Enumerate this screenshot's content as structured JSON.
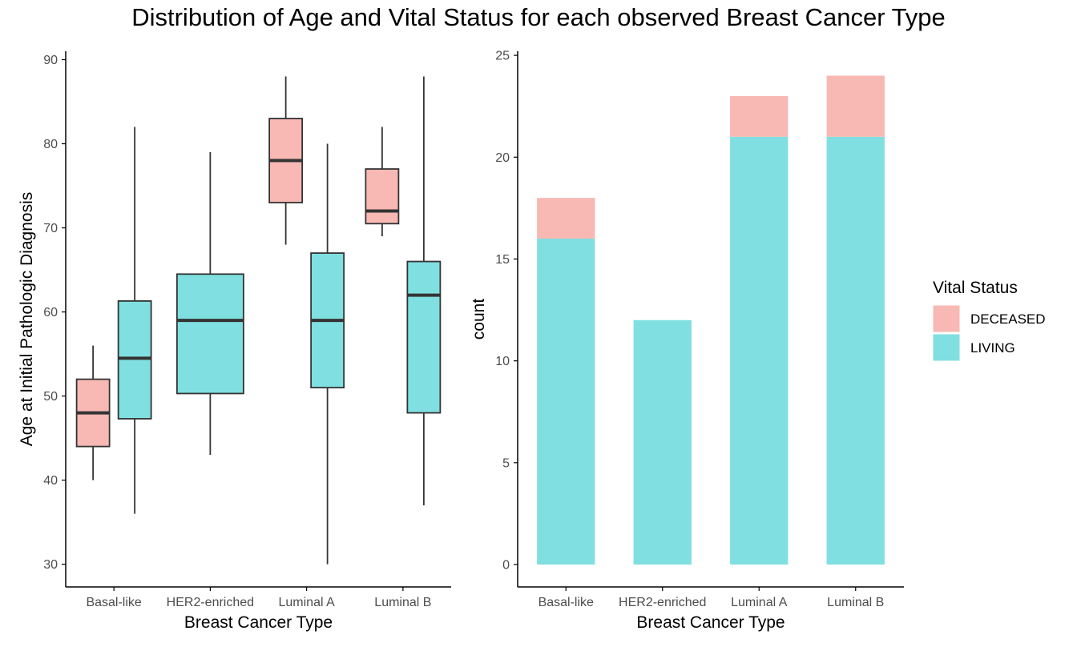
{
  "title": "Distribution of Age and Vital Status for each observed Breast Cancer Type",
  "colors": {
    "deceased": "#F8B8B4",
    "living": "#80DFE0",
    "stroke": "#333333",
    "axis": "#000000"
  },
  "legend": {
    "title": "Vital Status",
    "items": [
      {
        "label": "DECEASED",
        "color": "#F8B8B4"
      },
      {
        "label": "LIVING",
        "color": "#80DFE0"
      }
    ]
  },
  "chart_data": [
    {
      "type": "box",
      "xlabel": "Breast Cancer Type",
      "ylabel": "Age at Initial Pathologic Diagnosis",
      "ylim": [
        27.3,
        91
      ],
      "yticks": [
        30,
        40,
        50,
        60,
        70,
        80,
        90
      ],
      "categories": [
        "Basal-like",
        "HER2-enriched",
        "Luminal A",
        "Luminal B"
      ],
      "grid": false,
      "boxes": [
        {
          "category": "Basal-like",
          "group": "DECEASED",
          "min": 40,
          "q1": 44,
          "median": 48,
          "q3": 52,
          "max": 56
        },
        {
          "category": "Basal-like",
          "group": "LIVING",
          "min": 36,
          "q1": 47.3,
          "median": 54.5,
          "q3": 61.3,
          "max": 82
        },
        {
          "category": "HER2-enriched",
          "group": "LIVING",
          "min": 43,
          "q1": 50.3,
          "median": 59,
          "q3": 64.5,
          "max": 79
        },
        {
          "category": "Luminal A",
          "group": "DECEASED",
          "min": 68,
          "q1": 73,
          "median": 78,
          "q3": 83,
          "max": 88
        },
        {
          "category": "Luminal A",
          "group": "LIVING",
          "min": 30,
          "q1": 51,
          "median": 59,
          "q3": 67,
          "max": 80
        },
        {
          "category": "Luminal B",
          "group": "DECEASED",
          "min": 69,
          "q1": 70.5,
          "median": 72,
          "q3": 77,
          "max": 82
        },
        {
          "category": "Luminal B",
          "group": "LIVING",
          "min": 37,
          "q1": 48,
          "median": 62,
          "q3": 66,
          "max": 88
        }
      ]
    },
    {
      "type": "bar",
      "stacked": true,
      "xlabel": "Breast Cancer Type",
      "ylabel": "count",
      "ylim": [
        -1.1,
        25.2
      ],
      "yticks": [
        0,
        5,
        10,
        15,
        20,
        25
      ],
      "categories": [
        "Basal-like",
        "HER2-enriched",
        "Luminal A",
        "Luminal B"
      ],
      "grid": false,
      "legend_position": "right",
      "series": [
        {
          "name": "LIVING",
          "values": [
            16,
            12,
            21,
            21
          ]
        },
        {
          "name": "DECEASED",
          "values": [
            2,
            0,
            2,
            3
          ]
        }
      ]
    }
  ]
}
